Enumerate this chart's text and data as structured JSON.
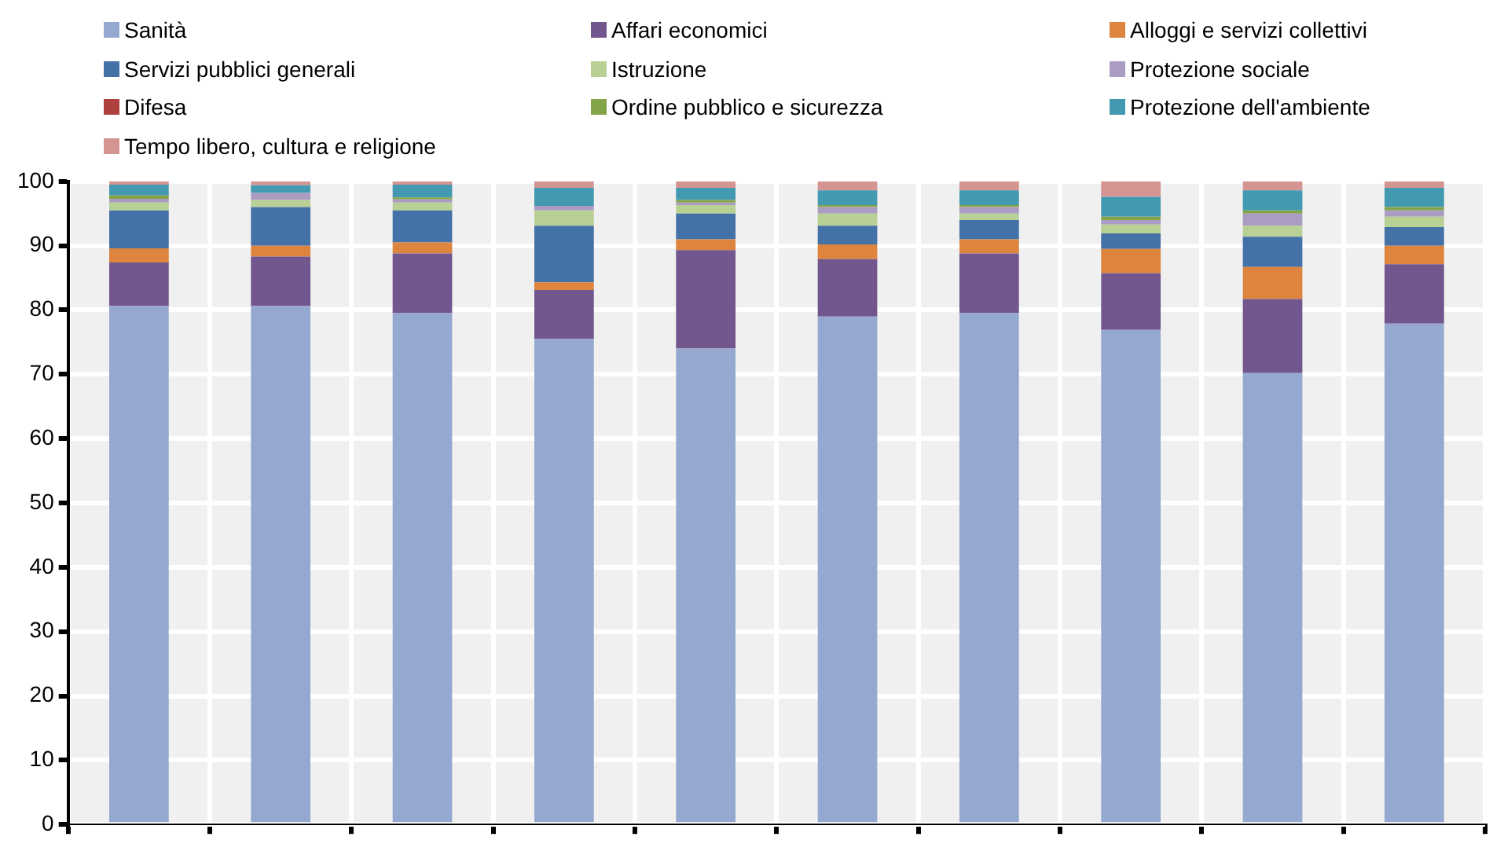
{
  "chart_data": {
    "type": "bar",
    "stacked": true,
    "legend": "top",
    "grid": true,
    "tick_labels": "y",
    "categories": [
      null,
      null,
      null,
      null,
      null,
      null,
      null,
      null,
      null,
      null
    ],
    "ylim": [
      0,
      100
    ],
    "yticks": [
      0,
      10,
      20,
      30,
      40,
      50,
      60,
      70,
      80,
      90,
      100
    ],
    "series": [
      {
        "name": "Sanità",
        "color": "#95a9d0",
        "values": [
          80.6,
          80.6,
          79.5,
          75.5,
          74.0,
          79.0,
          79.5,
          76.9,
          70.2,
          77.9
        ]
      },
      {
        "name": "Affari economici",
        "color": "#72578e",
        "values": [
          6.8,
          7.7,
          9.3,
          7.6,
          15.3,
          8.9,
          9.3,
          8.8,
          11.5,
          9.2
        ]
      },
      {
        "name": "Alloggi e servizi collettivi",
        "color": "#dd843e",
        "values": [
          2.2,
          1.7,
          1.7,
          1.2,
          1.7,
          2.3,
          2.2,
          3.8,
          5.0,
          2.9
        ]
      },
      {
        "name": "Servizi pubblici generali",
        "color": "#4472a7",
        "values": [
          5.9,
          6.0,
          5.0,
          8.8,
          4.0,
          2.9,
          3.0,
          2.4,
          4.7,
          2.9
        ]
      },
      {
        "name": "Istruzione",
        "color": "#b9d095",
        "values": [
          1.2,
          1.1,
          1.2,
          2.4,
          1.3,
          1.9,
          1.0,
          1.4,
          1.7,
          1.6
        ]
      },
      {
        "name": "Protezione sociale",
        "color": "#ab9cc1",
        "values": [
          0.6,
          1.1,
          0.5,
          0.7,
          0.4,
          1.0,
          1.0,
          0.7,
          1.9,
          1.0
        ]
      },
      {
        "name": "Difesa",
        "color": "#b0403e",
        "values": [
          0,
          0,
          0,
          0,
          0,
          0,
          0,
          0,
          0,
          0
        ]
      },
      {
        "name": "Ordine pubblico e sicurezza",
        "color": "#84a547",
        "values": [
          0.5,
          0,
          0.3,
          0,
          0.4,
          0.3,
          0.3,
          0.5,
          0.5,
          0.5
        ]
      },
      {
        "name": "Protezione dell'ambiente",
        "color": "#4299b0",
        "values": [
          1.7,
          1.2,
          2.0,
          2.8,
          1.9,
          2.3,
          2.3,
          3.1,
          3.1,
          3.0
        ]
      },
      {
        "name": "Tempo libero, cultura e religione",
        "color": "#d39492",
        "values": [
          0.5,
          0.6,
          0.5,
          1.0,
          1.0,
          1.4,
          1.4,
          2.4,
          1.4,
          1.0
        ]
      }
    ]
  }
}
